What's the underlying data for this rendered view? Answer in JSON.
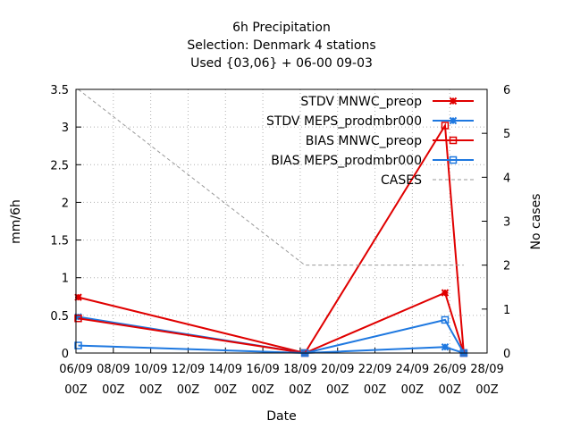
{
  "chart_data": {
    "type": "line",
    "title_lines": [
      "6h Precipitation",
      "Selection: Denmark      4 stations",
      "Used {03,06} + 06-00 09-03"
    ],
    "xlabel": "Date",
    "ylabel": "mm/6h",
    "y2label": "No cases",
    "x_tick_labels": [
      [
        "06/09",
        "00Z"
      ],
      [
        "08/09",
        "00Z"
      ],
      [
        "10/09",
        "00Z"
      ],
      [
        "12/09",
        "00Z"
      ],
      [
        "14/09",
        "00Z"
      ],
      [
        "16/09",
        "00Z"
      ],
      [
        "18/09",
        "00Z"
      ],
      [
        "20/09",
        "00Z"
      ],
      [
        "22/09",
        "00Z"
      ],
      [
        "24/09",
        "00Z"
      ],
      [
        "26/09",
        "00Z"
      ],
      [
        "28/09",
        "00Z"
      ]
    ],
    "x_unit": "days since 06/09 00Z",
    "xlim": [
      0,
      22
    ],
    "ylim": [
      0,
      3.5
    ],
    "yticks": [
      "0",
      "0.5",
      "1",
      "1.5",
      "2",
      "2.5",
      "3",
      "3.5"
    ],
    "y2lim": [
      0,
      6
    ],
    "y2ticks": [
      "0",
      "1",
      "2",
      "3",
      "4",
      "5",
      "6"
    ],
    "grid": true,
    "legend_position": "top-right",
    "series": [
      {
        "name": "STDV MNWC_preop",
        "color": "#e00000",
        "marker": "star",
        "axis": "y",
        "x": [
          0.12,
          12.25,
          19.75,
          20.75
        ],
        "y": [
          0.74,
          0.0,
          0.8,
          0.0
        ]
      },
      {
        "name": "STDV MEPS_prodmbr000",
        "color": "#1e78e0",
        "marker": "star",
        "axis": "y",
        "x": [
          0.12,
          12.25,
          19.75,
          20.75
        ],
        "y": [
          0.48,
          0.0,
          0.08,
          0.0
        ]
      },
      {
        "name": "BIAS MNWC_preop",
        "color": "#e00000",
        "marker": "square",
        "axis": "y",
        "x": [
          0.12,
          12.25,
          19.75,
          20.75
        ],
        "y": [
          0.46,
          0.0,
          3.02,
          0.0
        ]
      },
      {
        "name": "BIAS MEPS_prodmbr000",
        "color": "#1e78e0",
        "marker": "square",
        "axis": "y",
        "x": [
          0.12,
          12.25,
          19.75,
          20.75
        ],
        "y": [
          0.1,
          0.0,
          0.44,
          0.0
        ]
      },
      {
        "name": "CASES",
        "color": "#999999",
        "marker": "none",
        "dashed": true,
        "axis": "y2",
        "x": [
          0.12,
          12.25,
          19.75,
          20.75
        ],
        "y": [
          6,
          2,
          2,
          2
        ]
      }
    ]
  }
}
